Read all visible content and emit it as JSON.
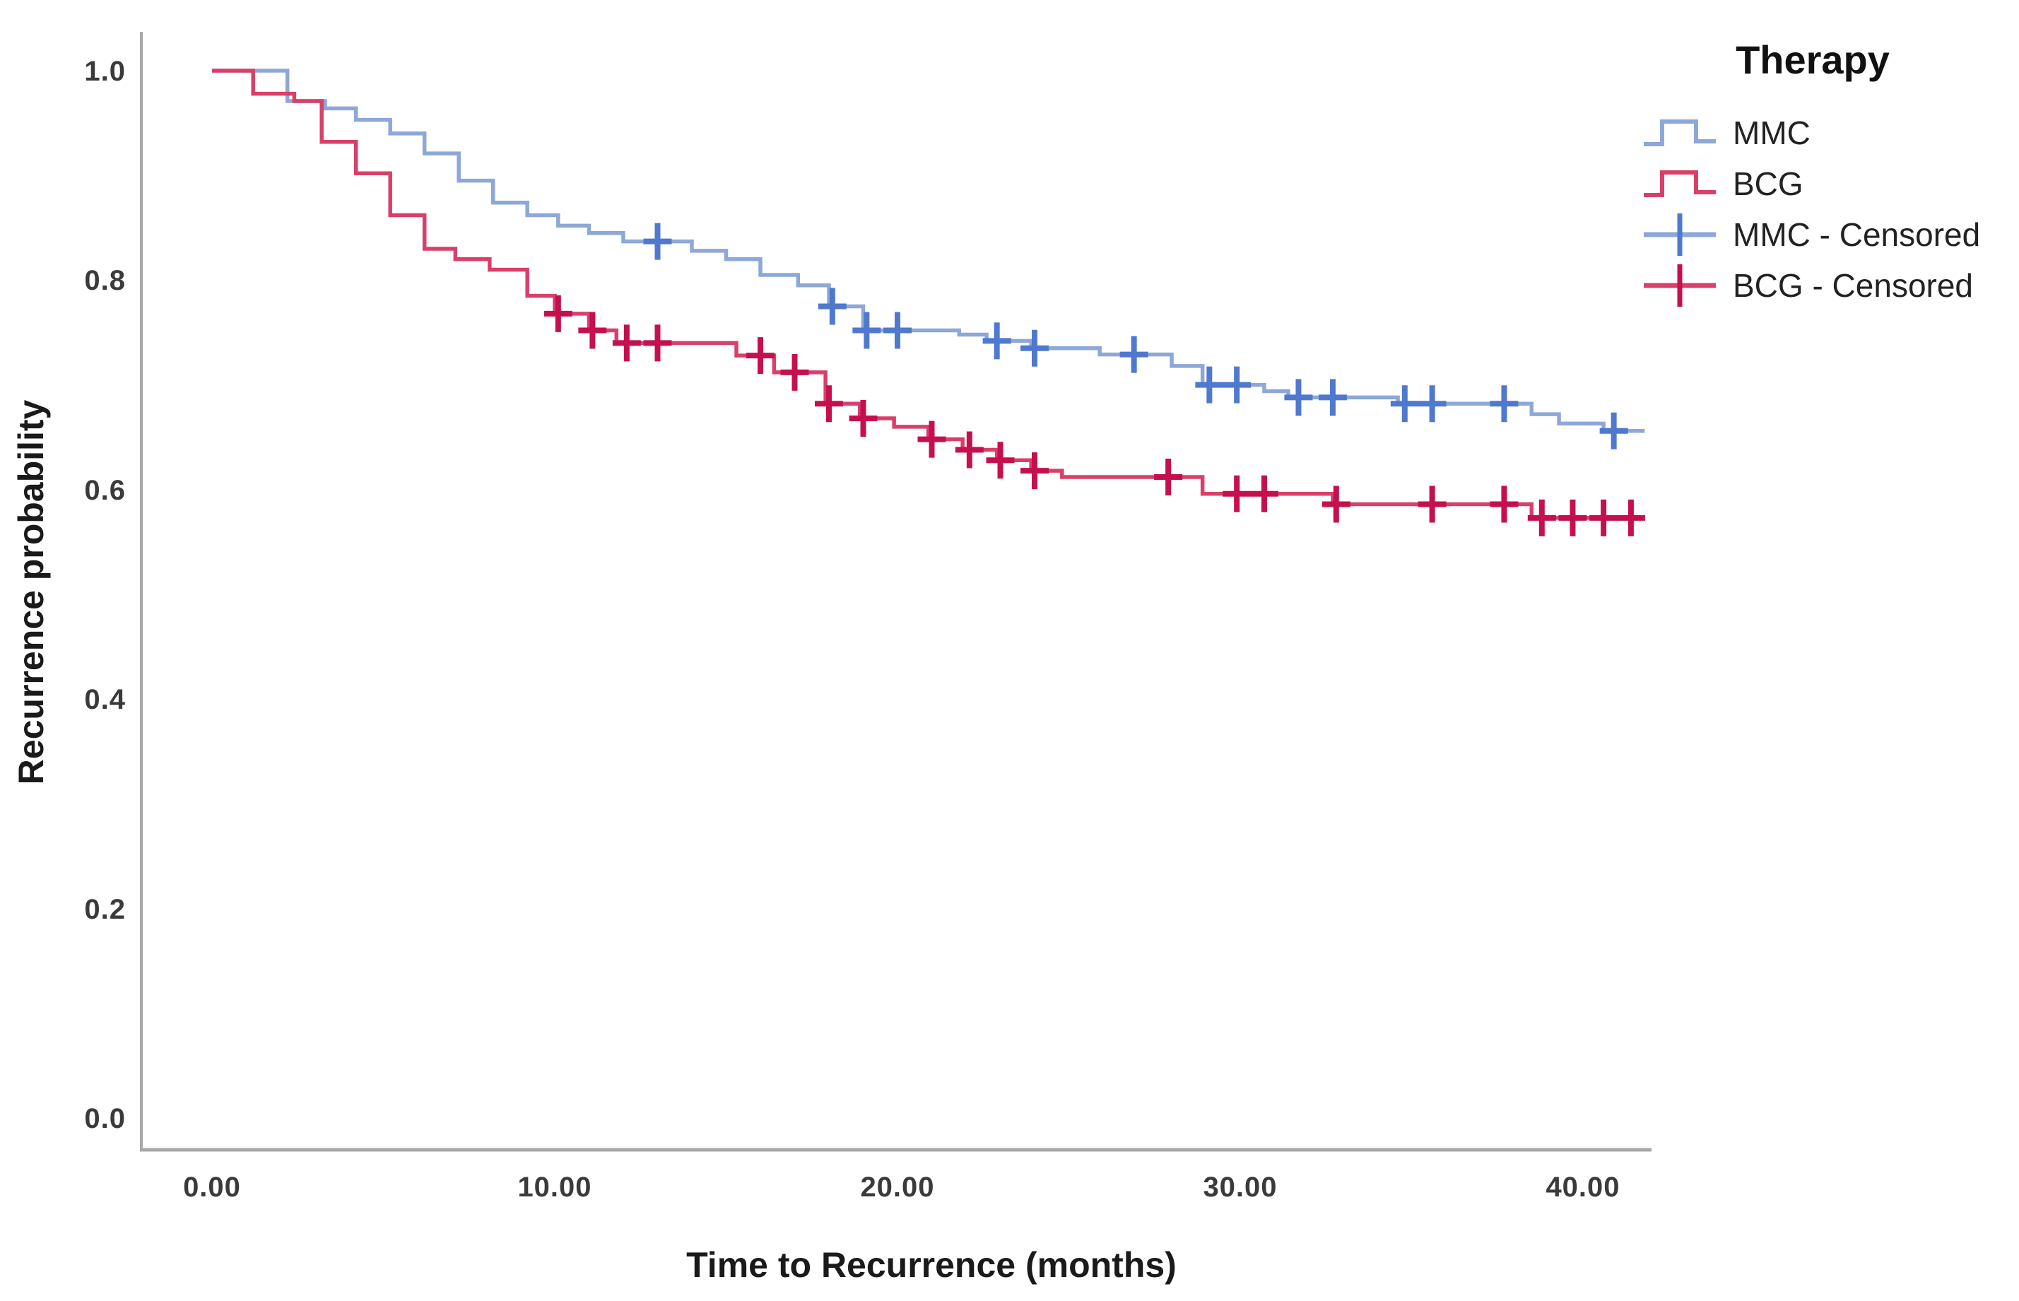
{
  "chart_data": {
    "type": "line",
    "subtype": "kaplan-meier-step",
    "title": "",
    "xlabel": "Time to Recurrence (months)",
    "ylabel": "Recurrence probability",
    "x_ticks": [
      "0.00",
      "10.00",
      "20.00",
      "30.00",
      "40.00"
    ],
    "x_tick_values": [
      0,
      10,
      20,
      30,
      40
    ],
    "y_ticks": [
      "1.0",
      "0.8",
      "0.6",
      "0.4",
      "0.2",
      "0.0"
    ],
    "y_tick_values": [
      1.0,
      0.8,
      0.6,
      0.4,
      0.2,
      0.0
    ],
    "xlim": [
      -2,
      42
    ],
    "ylim": [
      -0.03,
      1.04
    ],
    "grid": false,
    "axis_color": "#a8a8a8",
    "legend": {
      "title": "Therapy",
      "position": "top-right",
      "entries": [
        {
          "label": "MMC",
          "swatch": "step",
          "series": "MMC"
        },
        {
          "label": "BCG",
          "swatch": "step",
          "series": "BCG"
        },
        {
          "label": "MMC - Censored",
          "swatch": "plus",
          "series": "MMC"
        },
        {
          "label": "BCG - Censored",
          "swatch": "plus",
          "series": "BCG"
        }
      ]
    },
    "series": [
      {
        "name": "MMC",
        "color": "#8da8d8",
        "censor_color": "#4f79ce",
        "end_t": 41.8,
        "steps": [
          [
            0,
            1.0
          ],
          [
            2.2,
            0.971
          ],
          [
            3.3,
            0.964
          ],
          [
            4.2,
            0.953
          ],
          [
            5.2,
            0.94
          ],
          [
            6.2,
            0.921
          ],
          [
            7.2,
            0.895
          ],
          [
            8.2,
            0.874
          ],
          [
            9.2,
            0.862
          ],
          [
            10.1,
            0.852
          ],
          [
            11.0,
            0.845
          ],
          [
            12.0,
            0.837
          ],
          [
            14.0,
            0.828
          ],
          [
            15.0,
            0.82
          ],
          [
            16.0,
            0.805
          ],
          [
            17.1,
            0.795
          ],
          [
            18.0,
            0.775
          ],
          [
            19.0,
            0.752
          ],
          [
            21.8,
            0.748
          ],
          [
            22.6,
            0.742
          ],
          [
            23.9,
            0.735
          ],
          [
            25.9,
            0.729
          ],
          [
            28.0,
            0.718
          ],
          [
            28.9,
            0.7
          ],
          [
            30.7,
            0.694
          ],
          [
            31.4,
            0.688
          ],
          [
            34.6,
            0.682
          ],
          [
            38.5,
            0.672
          ],
          [
            39.3,
            0.663
          ],
          [
            40.6,
            0.656
          ]
        ],
        "censors": [
          [
            13.0,
            0.837
          ],
          [
            18.1,
            0.775
          ],
          [
            19.1,
            0.752
          ],
          [
            20.0,
            0.752
          ],
          [
            22.9,
            0.742
          ],
          [
            24.0,
            0.735
          ],
          [
            26.9,
            0.729
          ],
          [
            29.1,
            0.7
          ],
          [
            29.9,
            0.7
          ],
          [
            31.7,
            0.688
          ],
          [
            32.7,
            0.688
          ],
          [
            34.8,
            0.682
          ],
          [
            35.6,
            0.682
          ],
          [
            37.7,
            0.682
          ],
          [
            40.9,
            0.656
          ]
        ]
      },
      {
        "name": "BCG",
        "color": "#d8406a",
        "censor_color": "#c5104d",
        "end_t": 41.8,
        "steps": [
          [
            0,
            1.0
          ],
          [
            1.2,
            0.978
          ],
          [
            2.4,
            0.971
          ],
          [
            3.2,
            0.932
          ],
          [
            4.2,
            0.902
          ],
          [
            5.2,
            0.862
          ],
          [
            6.2,
            0.83
          ],
          [
            7.1,
            0.82
          ],
          [
            8.1,
            0.81
          ],
          [
            9.2,
            0.785
          ],
          [
            10.0,
            0.768
          ],
          [
            11.0,
            0.752
          ],
          [
            11.8,
            0.74
          ],
          [
            15.3,
            0.728
          ],
          [
            16.4,
            0.712
          ],
          [
            17.9,
            0.682
          ],
          [
            18.9,
            0.668
          ],
          [
            19.9,
            0.66
          ],
          [
            20.9,
            0.648
          ],
          [
            21.9,
            0.638
          ],
          [
            22.9,
            0.628
          ],
          [
            23.9,
            0.618
          ],
          [
            24.8,
            0.612
          ],
          [
            28.9,
            0.596
          ],
          [
            32.7,
            0.586
          ],
          [
            38.5,
            0.573
          ]
        ],
        "censors": [
          [
            10.1,
            0.768
          ],
          [
            11.1,
            0.752
          ],
          [
            12.1,
            0.74
          ],
          [
            13.0,
            0.74
          ],
          [
            16.0,
            0.728
          ],
          [
            17.0,
            0.712
          ],
          [
            18.0,
            0.682
          ],
          [
            19.0,
            0.668
          ],
          [
            21.0,
            0.648
          ],
          [
            22.1,
            0.638
          ],
          [
            23.0,
            0.628
          ],
          [
            24.0,
            0.618
          ],
          [
            27.9,
            0.612
          ],
          [
            29.9,
            0.596
          ],
          [
            30.7,
            0.596
          ],
          [
            32.8,
            0.586
          ],
          [
            35.6,
            0.586
          ],
          [
            37.7,
            0.586
          ],
          [
            38.8,
            0.573
          ],
          [
            39.7,
            0.573
          ],
          [
            40.6,
            0.573
          ],
          [
            41.4,
            0.573
          ]
        ]
      }
    ]
  }
}
